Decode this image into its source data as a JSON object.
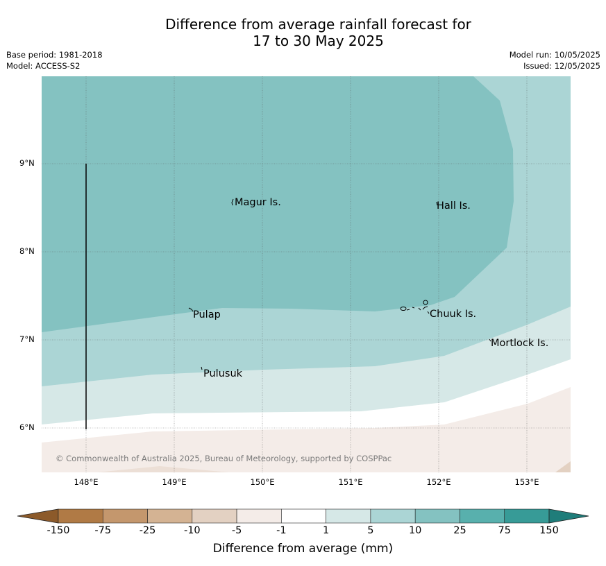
{
  "title_line1": "Difference from average rainfall forecast for",
  "title_line2": "17 to 30 May 2025",
  "meta_left": [
    "Base period: 1981-2018",
    "Model: ACCESS-S2"
  ],
  "meta_right": [
    "Model run: 10/05/2025",
    "Issued: 12/05/2025"
  ],
  "lat_labels": [
    "9°N",
    "8°N",
    "7°N",
    "6°N"
  ],
  "lon_labels": [
    "148°E",
    "149°E",
    "150°E",
    "151°E",
    "152°E",
    "153°E"
  ],
  "places": [
    "Magur Is.",
    "Hall Is.",
    "Pulap",
    "Chuuk Is.",
    "Mortlock Is.",
    "Pulusuk"
  ],
  "copyright": "© Commonwealth of Australia 2025, Bureau of Meteorology, supported by COSPPac",
  "colorbar": {
    "ticks": [
      "-150",
      "-75",
      "-25",
      "-10",
      "-5",
      "-1",
      "1",
      "5",
      "10",
      "25",
      "75",
      "150"
    ],
    "label": "Difference from average (mm)",
    "colors": [
      "#8c5a2a",
      "#b07a45",
      "#c4976d",
      "#d4b393",
      "#e3d1c2",
      "#f4ece8",
      "#ffffff",
      "#d6e8e7",
      "#abd5d5",
      "#84c2c1",
      "#58b0ad",
      "#379b97",
      "#1f7d7a"
    ]
  }
}
